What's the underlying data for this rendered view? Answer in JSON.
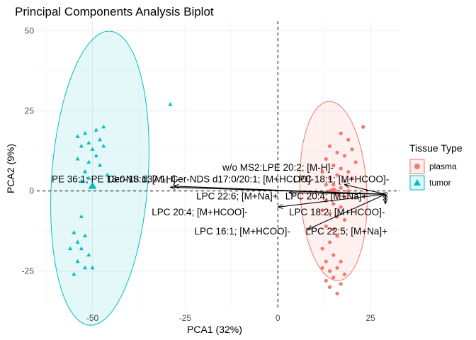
{
  "chart_data": {
    "type": "scatter",
    "title": "Principal Components Analysis Biplot",
    "xlabel": "PCA1 (32%)",
    "ylabel": "PCA2 (9%)",
    "xlim": [
      -65,
      33
    ],
    "ylim": [
      -37,
      53
    ],
    "x_ticks": [
      {
        "value": -50,
        "label": "-50"
      },
      {
        "value": -25,
        "label": "-25"
      },
      {
        "value": 0,
        "label": "0"
      },
      {
        "value": 25,
        "label": "25"
      }
    ],
    "y_ticks": [
      {
        "value": 50,
        "label": "50"
      },
      {
        "value": 25,
        "label": "25"
      },
      {
        "value": 0,
        "label": "0"
      },
      {
        "value": -25,
        "label": "-25"
      }
    ],
    "grid": true,
    "legend": {
      "title": "Tissue Type",
      "position": "right",
      "entries": [
        {
          "label": "plasma",
          "shape": "circle",
          "color": "#F8766D"
        },
        {
          "label": "tumor",
          "shape": "triangle",
          "color": "#00BFC4"
        }
      ]
    },
    "series": [
      {
        "name": "plasma",
        "color": "#F8766D",
        "shape": "circle",
        "centroid": [
          15,
          0
        ],
        "ellipse": {
          "center": [
            15,
            0
          ],
          "rx": 9,
          "ry": 28,
          "angle": -3
        },
        "points": [
          [
            23,
            20
          ],
          [
            17,
            18
          ],
          [
            19,
            16
          ],
          [
            14,
            14
          ],
          [
            20,
            13
          ],
          [
            16,
            12
          ],
          [
            18,
            11
          ],
          [
            13,
            10
          ],
          [
            21,
            9
          ],
          [
            15,
            8
          ],
          [
            17,
            7
          ],
          [
            19,
            6
          ],
          [
            12,
            6
          ],
          [
            16,
            5
          ],
          [
            14,
            4
          ],
          [
            20,
            4
          ],
          [
            18,
            3
          ],
          [
            15,
            2
          ],
          [
            13,
            2
          ],
          [
            17,
            1
          ],
          [
            19,
            0
          ],
          [
            14,
            0
          ],
          [
            16,
            -1
          ],
          [
            18,
            -2
          ],
          [
            13,
            -3
          ],
          [
            15,
            -4
          ],
          [
            17,
            -5
          ],
          [
            12,
            -6
          ],
          [
            14,
            -7
          ],
          [
            16,
            -8
          ],
          [
            18,
            -9
          ],
          [
            13,
            -11
          ],
          [
            15,
            -12
          ],
          [
            16,
            -14
          ],
          [
            14,
            -16
          ],
          [
            12,
            -18
          ],
          [
            15,
            -20
          ],
          [
            17,
            -22
          ],
          [
            13,
            -22
          ],
          [
            16,
            -24
          ],
          [
            14,
            -25
          ],
          [
            18,
            -26
          ],
          [
            15,
            -27
          ],
          [
            13,
            -28
          ],
          [
            17,
            -29
          ],
          [
            14,
            -30
          ],
          [
            16,
            -32
          ],
          [
            12,
            -24
          ]
        ]
      },
      {
        "name": "tumor",
        "color": "#00BFC4",
        "shape": "triangle",
        "centroid": [
          -50,
          1.5
        ],
        "ellipse": {
          "center": [
            -48,
            4
          ],
          "rx": 13,
          "ry": 46,
          "angle": 4
        },
        "points": [
          [
            -29,
            27
          ],
          [
            -47,
            20
          ],
          [
            -49,
            19
          ],
          [
            -52,
            18
          ],
          [
            -54,
            17
          ],
          [
            -48,
            16
          ],
          [
            -51,
            15
          ],
          [
            -47,
            14
          ],
          [
            -53,
            14
          ],
          [
            -50,
            13
          ],
          [
            -49,
            11
          ],
          [
            -54,
            10
          ],
          [
            -51,
            9
          ],
          [
            -48,
            8
          ],
          [
            -52,
            6
          ],
          [
            -46,
            5
          ],
          [
            -53,
            3
          ],
          [
            -50,
            2
          ],
          [
            -55,
            -13
          ],
          [
            -52,
            -14
          ],
          [
            -54,
            -16
          ],
          [
            -53,
            -18
          ],
          [
            -56,
            -18
          ],
          [
            -51,
            -20
          ],
          [
            -54,
            -22
          ],
          [
            -52,
            -24
          ],
          [
            -50,
            -24
          ],
          [
            -55,
            -26
          ],
          [
            -53,
            -8
          ],
          [
            -51,
            4
          ]
        ]
      }
    ],
    "loadings": [
      {
        "label": "w/o MS2:LPE 20:2; [M-H]-",
        "tip": [
          18,
          2
        ],
        "label_pos": [
          15,
          7.5
        ],
        "anchor": "end"
      },
      {
        "label": "PE 36:1; PE 18:0-18:1; [M-H]-",
        "tip": [
          -28,
          1.5
        ],
        "label_pos": [
          -61,
          3.8
        ],
        "anchor": "start"
      },
      {
        "label": "Cer-NS d37:1; Cer-NDS d17:0/20:1; [M+HCOO]-",
        "tip": [
          -29,
          1.2
        ],
        "label_pos": [
          -46,
          3.8
        ],
        "anchor": "start"
      },
      {
        "label": "LPC 18:1; [M+HCOO]-",
        "tip": [
          28,
          -1
        ],
        "label_pos": [
          30,
          3.8
        ],
        "anchor": "end"
      },
      {
        "label": "LPC 22:6; [M+Na]+",
        "tip": [
          3,
          -0.5
        ],
        "label_pos": [
          -22,
          -1.5
        ],
        "anchor": "start"
      },
      {
        "label": "LPC 20:4; [M+Na]+",
        "tip": [
          29,
          -2
        ],
        "label_pos": [
          2,
          -1.5
        ],
        "anchor": "start"
      },
      {
        "label": "LPC 20:4; [M+HCOO]-",
        "tip": [
          0,
          -5
        ],
        "label_pos": [
          -34,
          -6.5
        ],
        "anchor": "start"
      },
      {
        "label": "LPC 18:2; [M+HCOO]-",
        "tip": [
          29,
          -3
        ],
        "label_pos": [
          3,
          -6.5
        ],
        "anchor": "start"
      },
      {
        "label": "LPC 16:1; [M+HCOO]-",
        "tip": [
          8,
          -12
        ],
        "label_pos": [
          -22.5,
          -12.5
        ],
        "anchor": "start"
      },
      {
        "label": "LPC 22:5; [M+Na]+",
        "tip": [
          29,
          -4
        ],
        "label_pos": [
          7.5,
          -12.5
        ],
        "anchor": "start"
      }
    ],
    "loading_origin": [
      29,
      -1
    ]
  }
}
